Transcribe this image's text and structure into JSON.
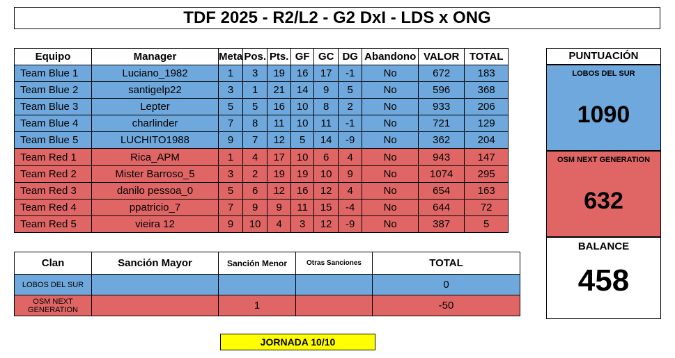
{
  "title": "TDF 2025 - R2/L2 - G2 DxI - LDS x ONG",
  "main_table": {
    "headers": [
      "Equipo",
      "Manager",
      "Meta",
      "Pos.",
      "Pts.",
      "GF",
      "GC",
      "DG",
      "Abandono",
      "VALOR",
      "TOTAL"
    ],
    "rows": [
      {
        "team": "Team Blue 1",
        "manager": "Luciano_1982",
        "meta": "1",
        "pos": "3",
        "pts": "19",
        "gf": "16",
        "gc": "17",
        "dg": "-1",
        "abandono": "No",
        "valor": "672",
        "total": "183"
      },
      {
        "team": "Team Blue 2",
        "manager": "santigelp22",
        "meta": "3",
        "pos": "1",
        "pts": "21",
        "gf": "14",
        "gc": "9",
        "dg": "5",
        "abandono": "No",
        "valor": "596",
        "total": "368"
      },
      {
        "team": "Team Blue 3",
        "manager": "Lepter",
        "meta": "5",
        "pos": "5",
        "pts": "16",
        "gf": "10",
        "gc": "8",
        "dg": "2",
        "abandono": "No",
        "valor": "933",
        "total": "206"
      },
      {
        "team": "Team Blue 4",
        "manager": "charlinder",
        "meta": "7",
        "pos": "8",
        "pts": "11",
        "gf": "10",
        "gc": "11",
        "dg": "-1",
        "abandono": "No",
        "valor": "721",
        "total": "129"
      },
      {
        "team": "Team Blue 5",
        "manager": "LUCHITO1988",
        "meta": "9",
        "pos": "7",
        "pts": "12",
        "gf": "5",
        "gc": "14",
        "dg": "-9",
        "abandono": "No",
        "valor": "362",
        "total": "204"
      },
      {
        "team": "Team Red 1",
        "manager": "Rica_APM",
        "meta": "1",
        "pos": "4",
        "pts": "17",
        "gf": "10",
        "gc": "6",
        "dg": "4",
        "abandono": "No",
        "valor": "943",
        "total": "147"
      },
      {
        "team": "Team Red 2",
        "manager": "Mister Barroso_5",
        "meta": "3",
        "pos": "2",
        "pts": "19",
        "gf": "19",
        "gc": "10",
        "dg": "9",
        "abandono": "No",
        "valor": "1074",
        "total": "295"
      },
      {
        "team": "Team Red 3",
        "manager": "danilo pessoa_0",
        "meta": "5",
        "pos": "6",
        "pts": "12",
        "gf": "16",
        "gc": "12",
        "dg": "4",
        "abandono": "No",
        "valor": "654",
        "total": "163"
      },
      {
        "team": "Team Red 4",
        "manager": "ppatricio_7",
        "meta": "7",
        "pos": "9",
        "pts": "9",
        "gf": "11",
        "gc": "15",
        "dg": "-4",
        "abandono": "No",
        "valor": "644",
        "total": "72"
      },
      {
        "team": "Team Red 5",
        "manager": "vieira 12",
        "meta": "9",
        "pos": "10",
        "pts": "4",
        "gf": "3",
        "gc": "12",
        "dg": "-9",
        "abandono": "No",
        "valor": "387",
        "total": "5"
      }
    ]
  },
  "score": {
    "header": "PUNTUACIÓN",
    "blue_name": "LOBOS DEL SUR",
    "blue_score": "1090",
    "red_name": "OSM NEXT GENERATION",
    "red_score": "632",
    "balance_label": "BALANCE",
    "balance_value": "458"
  },
  "penalties": {
    "headers": [
      "Clan",
      "Sanción Mayor",
      "Sanción Menor",
      "Otras Sanciones",
      "TOTAL"
    ],
    "rows": [
      {
        "clan": "LOBOS DEL SUR",
        "mayor": "",
        "menor": "",
        "otras": "",
        "total": "0"
      },
      {
        "clan": "OSM NEXT GENERATION",
        "mayor": "",
        "menor": "1",
        "otras": "",
        "total": "-50"
      }
    ]
  },
  "jornada": "JORNADA 10/10",
  "colors": {
    "blue": "#6fa8dc",
    "red": "#e06666",
    "yellow": "#ffff00"
  }
}
